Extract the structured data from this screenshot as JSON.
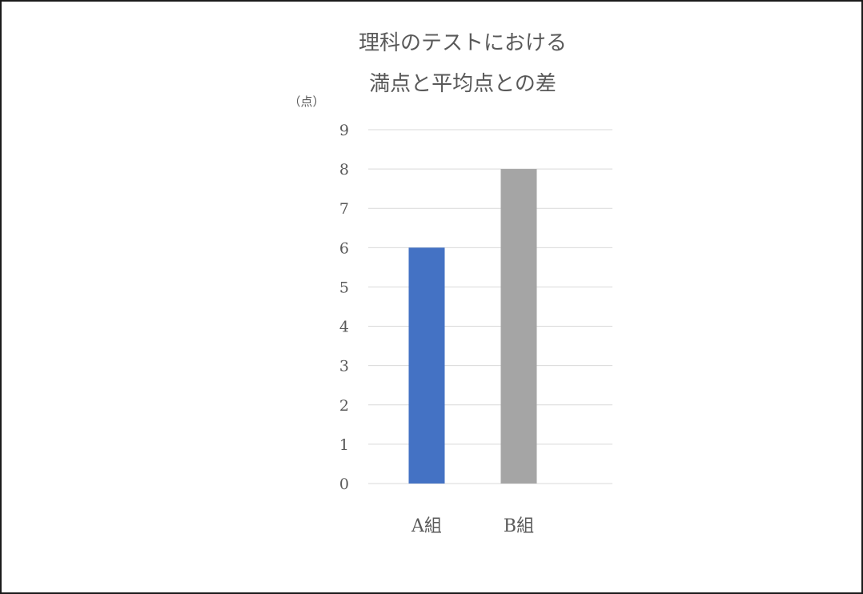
{
  "chart_data": {
    "type": "bar",
    "title_lines": [
      "理科のテストにおける",
      "満点と平均点との差"
    ],
    "ylabel": "（点）",
    "xlabel": "",
    "categories": [
      "A組",
      "B組"
    ],
    "values": [
      6,
      8
    ],
    "colors": [
      "#4472C4",
      "#A5A5A5"
    ],
    "ylim": [
      0,
      9
    ],
    "yticks": [
      "0",
      "1",
      "2",
      "3",
      "4",
      "5",
      "6",
      "7",
      "8",
      "9"
    ],
    "grid": true,
    "legend": "none"
  }
}
